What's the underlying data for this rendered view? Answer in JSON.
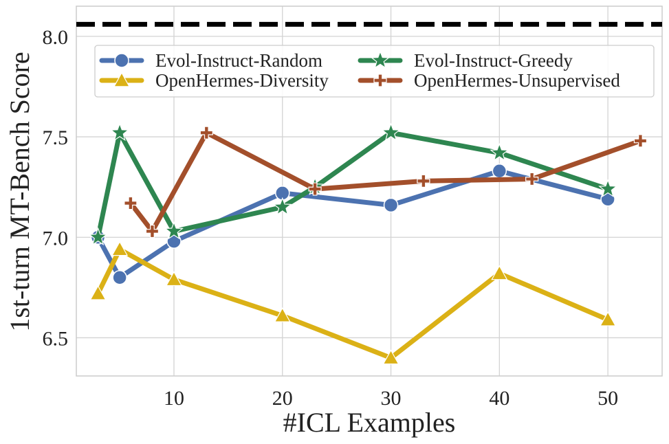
{
  "chart_data": {
    "type": "line",
    "title": "",
    "xlabel": "#ICL Examples",
    "ylabel": "1st-turn MT-Bench Score",
    "xlim": [
      1,
      55
    ],
    "ylim": [
      6.31,
      8.15
    ],
    "xticks": [
      10,
      20,
      30,
      40,
      50
    ],
    "yticks": [
      6.5,
      7.0,
      7.5,
      8.0
    ],
    "xtick_labels": [
      "10",
      "20",
      "30",
      "40",
      "50"
    ],
    "ytick_labels": [
      "6.5",
      "7.0",
      "7.5",
      "8.0"
    ],
    "grid": true,
    "legend_position": "top",
    "reference_line": {
      "y": 8.06,
      "style": "dashed",
      "color": "#000000"
    },
    "series": [
      {
        "name": "Evol-Instruct-Random",
        "color": "#4c72b0",
        "marker": "circle",
        "x": [
          3,
          5,
          10,
          20,
          30,
          40,
          50
        ],
        "y": [
          7.0,
          6.8,
          6.98,
          7.22,
          7.16,
          7.33,
          7.19
        ]
      },
      {
        "name": "OpenHermes-Diversity",
        "color": "#dbb116",
        "marker": "triangle",
        "x": [
          3,
          5,
          10,
          20,
          30,
          40,
          50
        ],
        "y": [
          6.72,
          6.94,
          6.79,
          6.61,
          6.4,
          6.82,
          6.59
        ]
      },
      {
        "name": "Evol-Instruct-Greedy",
        "color": "#2e8650",
        "marker": "star",
        "x": [
          3,
          5,
          10,
          20,
          23,
          30,
          40,
          50
        ],
        "y": [
          7.0,
          7.52,
          7.03,
          7.15,
          7.25,
          7.52,
          7.42,
          7.24
        ]
      },
      {
        "name": "OpenHermes-Unsupervised",
        "color": "#a34f2b",
        "marker": "plus",
        "x": [
          6,
          8,
          13,
          23,
          33,
          43,
          53
        ],
        "y": [
          7.17,
          7.03,
          7.52,
          7.24,
          7.28,
          7.29,
          7.48
        ]
      }
    ]
  }
}
